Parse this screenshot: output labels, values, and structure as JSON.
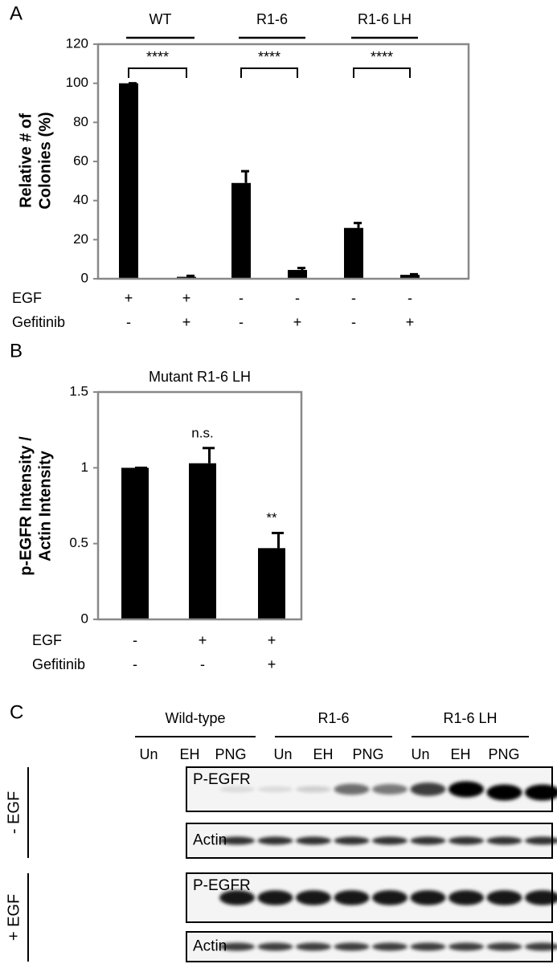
{
  "chart_data": [
    {
      "type": "bar",
      "panel": "A",
      "ylabel": [
        "Relative # of",
        "Colonies (%)"
      ],
      "groups": [
        "WT",
        "R1-6",
        "R1-6 LH"
      ],
      "significance": [
        "****",
        "****",
        "****"
      ],
      "values": [
        100,
        1,
        49,
        4.5,
        26,
        2
      ],
      "errors": [
        0,
        0.5,
        6,
        1,
        2.5,
        0.3
      ],
      "color": "#000000",
      "ylim": [
        0,
        120
      ],
      "yticks": [
        0,
        20,
        40,
        60,
        80,
        100,
        120
      ],
      "conditions": [
        {
          "name": "EGF",
          "marks": [
            "+",
            "+",
            "-",
            "-",
            "-",
            "-"
          ]
        },
        {
          "name": "Gefitinib",
          "marks": [
            "-",
            "+",
            "-",
            "+",
            "-",
            "+"
          ]
        }
      ]
    },
    {
      "type": "bar",
      "panel": "B",
      "title": "Mutant R1-6 LH",
      "ylabel": [
        "p-EGFR Intensity /",
        "Actin Intensity"
      ],
      "values": [
        1,
        1.03,
        0.47
      ],
      "errors": [
        0,
        0.1,
        0.1
      ],
      "annotations": [
        null,
        "n.s.",
        "**"
      ],
      "color": "#000000",
      "ylim": [
        0,
        1.5
      ],
      "yticks": [
        0,
        0.5,
        1,
        1.5
      ],
      "conditions": [
        {
          "name": "EGF",
          "marks": [
            "-",
            "+",
            "+"
          ]
        },
        {
          "name": "Gefitinib",
          "marks": [
            "-",
            "-",
            "+"
          ]
        }
      ]
    }
  ],
  "blot": {
    "panel": "C",
    "groups": [
      "Wild-type",
      "R1-6",
      "R1-6 LH"
    ],
    "lanes": [
      "Un",
      "EH",
      "PNG",
      "Un",
      "EH",
      "PNG",
      "Un",
      "EH",
      "PNG"
    ],
    "sections": [
      {
        "label": "- EGF",
        "rows": [
          "P-EGFR",
          "Actin"
        ]
      },
      {
        "label": "+ EGF",
        "rows": [
          "P-EGFR",
          "Actin"
        ]
      }
    ]
  }
}
